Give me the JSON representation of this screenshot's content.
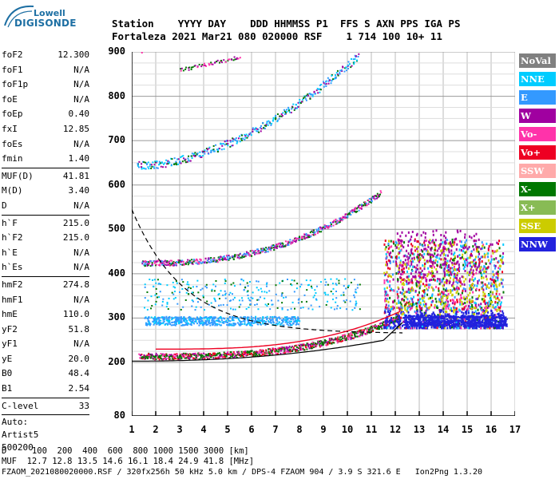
{
  "logo": {
    "line1": "Lowell",
    "line2": "DIGISONDE"
  },
  "header": {
    "line1": "Station    YYYY DAY    DDD HHMMSS P1  FFS S AXN PPS IGA PS",
    "line2": "Fortaleza 2021 Mar21 080 020000 RSF    1 714 100 10+ 11"
  },
  "params": {
    "g1": [
      {
        "k": "foF2",
        "v": "12.300"
      },
      {
        "k": "foF1",
        "v": "N/A"
      },
      {
        "k": "foF1p",
        "v": "N/A"
      },
      {
        "k": "foE",
        "v": "N/A"
      },
      {
        "k": "foEp",
        "v": "0.40"
      },
      {
        "k": "fxI",
        "v": "12.85"
      },
      {
        "k": "foEs",
        "v": "N/A"
      },
      {
        "k": "fmin",
        "v": "1.40"
      }
    ],
    "g2": [
      {
        "k": "MUF(D)",
        "v": "41.81"
      },
      {
        "k": "M(D)",
        "v": "3.40"
      },
      {
        "k": "D",
        "v": "N/A"
      }
    ],
    "g3": [
      {
        "k": "h`F",
        "v": "215.0"
      },
      {
        "k": "h`F2",
        "v": "215.0"
      },
      {
        "k": "h`E",
        "v": "N/A"
      },
      {
        "k": "h`Es",
        "v": "N/A"
      }
    ],
    "g4": [
      {
        "k": "hmF2",
        "v": "274.8"
      },
      {
        "k": "hmF1",
        "v": "N/A"
      },
      {
        "k": "hmE",
        "v": "110.0"
      },
      {
        "k": "yF2",
        "v": "51.8"
      },
      {
        "k": "yF1",
        "v": "N/A"
      },
      {
        "k": "yE",
        "v": "20.0"
      },
      {
        "k": "B0",
        "v": "48.4"
      },
      {
        "k": "B1",
        "v": "2.54"
      }
    ],
    "g5": [
      {
        "k": "C-level",
        "v": "33"
      }
    ],
    "auto": [
      "Auto:",
      "Artist5",
      "500200"
    ]
  },
  "legend": [
    {
      "label": "NoVal",
      "color": "#808080"
    },
    {
      "label": "NNE",
      "color": "#00ccff"
    },
    {
      "label": "E",
      "color": "#3399ff"
    },
    {
      "label": "W",
      "color": "#a000a0"
    },
    {
      "label": "Vo-",
      "color": "#ff33aa"
    },
    {
      "label": "Vo+",
      "color": "#ee0022"
    },
    {
      "label": "SSW",
      "color": "#ffaaaa"
    },
    {
      "label": "X-",
      "color": "#007700"
    },
    {
      "label": "X+",
      "color": "#88bb55"
    },
    {
      "label": "SSE",
      "color": "#cccc00"
    },
    {
      "label": "NNW",
      "color": "#2222dd"
    }
  ],
  "axes": {
    "y_ticks": [
      "900",
      "800",
      "700",
      "600",
      "500",
      "400",
      "300",
      "200",
      "80"
    ],
    "x_ticks": [
      "1",
      "2",
      "3",
      "4",
      "5",
      "6",
      "7",
      "8",
      "9",
      "10",
      "11",
      "12",
      "13",
      "14",
      "15",
      "16",
      "17"
    ]
  },
  "footer": {
    "line1": "D     100  200  400  600  800 1000 1500 3000 [km]",
    "line2": "MUF  12.7 12.8 13.5 14.6 16.1 18.4 24.9 41.8 [MHz]",
    "line3": "FZAOM_2021080020000.RSF / 320fx256h 50 kHz 5.0 km / DPS-4 FZAOM 904 / 3.9 S 321.6 E   Ion2Png 1.3.20"
  }
}
